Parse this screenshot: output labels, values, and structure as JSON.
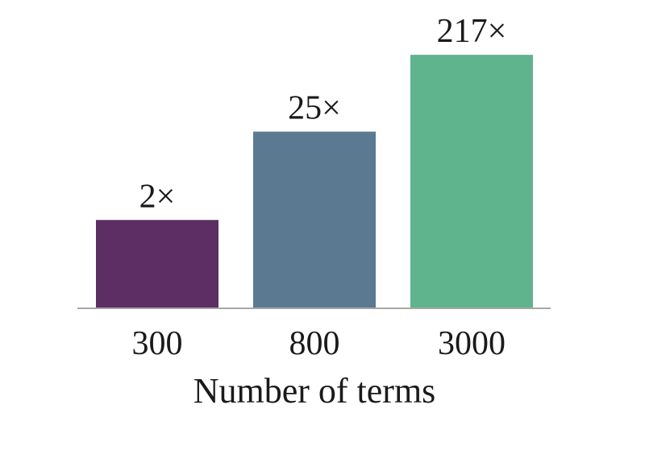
{
  "chart_data": {
    "type": "bar",
    "title": "",
    "xlabel": "Number of terms",
    "ylabel": "",
    "categories": [
      "300",
      "800",
      "3000"
    ],
    "values": [
      23,
      46,
      66
    ],
    "value_labels": [
      "2×",
      "25×",
      "217×"
    ],
    "colors": [
      "#5c2e63",
      "#5b7a92",
      "#5fb38d"
    ],
    "ylim": [
      0,
      70
    ],
    "grid": false,
    "legend": "none"
  }
}
